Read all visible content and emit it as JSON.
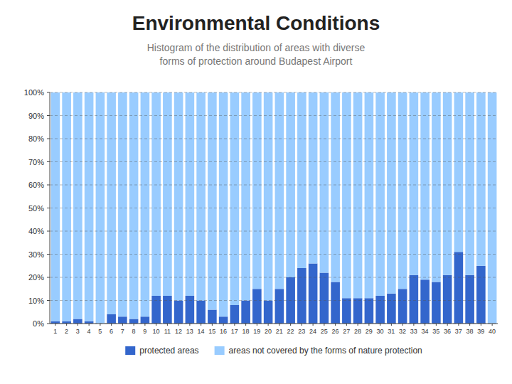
{
  "chart_data": {
    "type": "bar",
    "stacked": true,
    "title": "Environmental Conditions",
    "subtitle": "Histogram of the distribution of areas with diverse\nforms of protection around Budapest Airport",
    "categories": [
      1,
      2,
      3,
      4,
      5,
      6,
      7,
      8,
      9,
      10,
      11,
      12,
      13,
      14,
      15,
      16,
      17,
      18,
      19,
      20,
      21,
      22,
      23,
      24,
      25,
      26,
      27,
      28,
      29,
      30,
      31,
      32,
      33,
      34,
      35,
      36,
      37,
      38,
      39,
      40
    ],
    "series": [
      {
        "name": "protected areas",
        "color": "#3366CC",
        "values": [
          1,
          1,
          2,
          1,
          0,
          4,
          3,
          2,
          3,
          12,
          12,
          10,
          12,
          10,
          6,
          3,
          8,
          10,
          15,
          10,
          15,
          20,
          24,
          26,
          22,
          18,
          11,
          11,
          11,
          12,
          13,
          15,
          21,
          19,
          18,
          21,
          31,
          21,
          25,
          0
        ]
      },
      {
        "name": "areas not covered by the forms of nature protection",
        "color": "#99CCFF",
        "values": [
          99,
          99,
          98,
          99,
          100,
          96,
          97,
          98,
          97,
          88,
          88,
          90,
          88,
          90,
          94,
          97,
          92,
          90,
          85,
          90,
          85,
          80,
          76,
          74,
          78,
          82,
          89,
          89,
          89,
          88,
          87,
          85,
          79,
          81,
          82,
          79,
          69,
          79,
          75,
          100
        ]
      }
    ],
    "ylim": [
      0,
      100
    ],
    "yticks": [
      {
        "value": 0,
        "label": "0%"
      },
      {
        "value": 10,
        "label": "10%"
      },
      {
        "value": 20,
        "label": "20%"
      },
      {
        "value": 30,
        "label": "30%"
      },
      {
        "value": 40,
        "label": "40%"
      },
      {
        "value": 50,
        "label": "50%"
      },
      {
        "value": 60,
        "label": "60%"
      },
      {
        "value": 70,
        "label": "70%"
      },
      {
        "value": 80,
        "label": "80%"
      },
      {
        "value": 90,
        "label": "90%"
      },
      {
        "value": 100,
        "label": "100%"
      }
    ],
    "grid": true,
    "legend": "bottom"
  }
}
